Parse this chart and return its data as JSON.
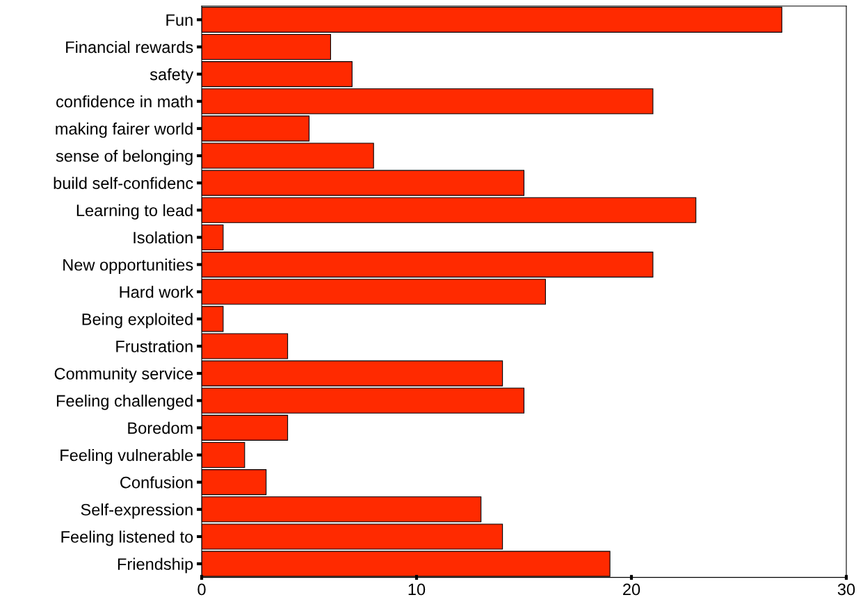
{
  "chart_data": {
    "type": "bar",
    "orientation": "horizontal",
    "categories": [
      "Fun",
      "Financial rewards",
      "safety",
      "confidence in math",
      "making fairer world",
      "sense of belonging",
      "build self-confidenc",
      "Learning to lead",
      "Isolation",
      "New opportunities",
      "Hard work",
      "Being exploited",
      "Frustration",
      "Community service",
      "Feeling challenged",
      "Boredom",
      "Feeling vulnerable",
      "Confusion",
      "Self-expression",
      "Feeling listened to",
      "Friendship"
    ],
    "values": [
      27,
      6,
      7,
      21,
      5,
      8,
      15,
      23,
      1,
      21,
      16,
      1,
      4,
      14,
      15,
      4,
      2,
      3,
      13,
      14,
      19
    ],
    "color": "#ff2a00",
    "xlim": [
      0,
      30
    ],
    "xticks": [
      0,
      10,
      20,
      30
    ],
    "grid": false
  }
}
